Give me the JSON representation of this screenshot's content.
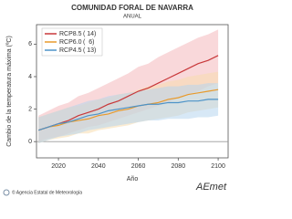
{
  "chart_data": {
    "type": "line",
    "title": "COMUNIDAD FORAL DE NAVARRA",
    "subtitle": "ANUAL",
    "y_label": "Cambio de la temperatura máxima (ºC)",
    "x_label": "Año",
    "source": "© Agencia Estatal de Meteorología",
    "logo": "AEmet",
    "x": [
      2010,
      2015,
      2020,
      2025,
      2030,
      2035,
      2040,
      2045,
      2050,
      2055,
      2060,
      2065,
      2070,
      2075,
      2080,
      2085,
      2090,
      2095,
      2100
    ],
    "xlim": [
      2009,
      2105
    ],
    "xticks": [
      2020,
      2040,
      2060,
      2080,
      2100
    ],
    "ylim": [
      -1,
      7.2
    ],
    "yticks": [
      0,
      2,
      4,
      6
    ],
    "grid": false,
    "legend": "upper-left",
    "series": [
      {
        "name": "RCP8.5",
        "count_label": "( 14)",
        "color": "#c8383a",
        "band_color": "#f4b8bb",
        "values": [
          0.7,
          0.9,
          1.1,
          1.3,
          1.6,
          1.8,
          2.0,
          2.3,
          2.5,
          2.8,
          3.1,
          3.3,
          3.6,
          3.9,
          4.2,
          4.5,
          4.8,
          5.0,
          5.3
        ],
        "upper": [
          1.6,
          1.9,
          2.2,
          2.4,
          2.8,
          3.0,
          3.3,
          3.6,
          3.9,
          4.2,
          4.6,
          4.8,
          5.2,
          5.5,
          5.8,
          6.1,
          6.4,
          6.6,
          6.9
        ],
        "lower": [
          0.0,
          0.2,
          0.3,
          0.5,
          0.7,
          0.9,
          1.0,
          1.2,
          1.4,
          1.6,
          1.8,
          2.0,
          2.2,
          2.4,
          2.7,
          2.9,
          3.1,
          3.4,
          3.6
        ]
      },
      {
        "name": "RCP6.0",
        "count_label": "(  6)",
        "color": "#e89a2c",
        "band_color": "#f8dcae",
        "values": [
          0.7,
          0.9,
          1.0,
          1.2,
          1.3,
          1.4,
          1.6,
          1.7,
          1.9,
          2.0,
          2.2,
          2.3,
          2.4,
          2.6,
          2.7,
          2.9,
          3.0,
          3.1,
          3.2
        ],
        "upper": [
          1.5,
          1.7,
          1.9,
          2.1,
          2.2,
          2.4,
          2.6,
          2.7,
          2.9,
          3.0,
          3.2,
          3.4,
          3.5,
          3.7,
          3.8,
          4.0,
          4.1,
          4.2,
          4.3
        ],
        "lower": [
          -0.1,
          0.1,
          0.2,
          0.3,
          0.5,
          0.5,
          0.7,
          0.8,
          0.9,
          1.0,
          1.2,
          1.3,
          1.4,
          1.5,
          1.6,
          1.8,
          1.9,
          2.0,
          2.1
        ]
      },
      {
        "name": "RCP4.5",
        "count_label": "( 13)",
        "color": "#4d93c8",
        "band_color": "#b6d6ee",
        "values": [
          0.7,
          0.9,
          1.1,
          1.2,
          1.4,
          1.6,
          1.7,
          1.9,
          2.0,
          2.1,
          2.2,
          2.3,
          2.3,
          2.4,
          2.4,
          2.5,
          2.5,
          2.6,
          2.6
        ],
        "upper": [
          1.5,
          1.7,
          1.9,
          2.1,
          2.3,
          2.5,
          2.6,
          2.8,
          2.9,
          3.0,
          3.1,
          3.2,
          3.3,
          3.4,
          3.4,
          3.5,
          3.5,
          3.6,
          3.6
        ],
        "lower": [
          -0.1,
          0.1,
          0.3,
          0.4,
          0.5,
          0.7,
          0.8,
          0.9,
          1.0,
          1.1,
          1.2,
          1.3,
          1.3,
          1.4,
          1.4,
          1.4,
          1.5,
          1.5,
          1.6
        ]
      }
    ]
  }
}
